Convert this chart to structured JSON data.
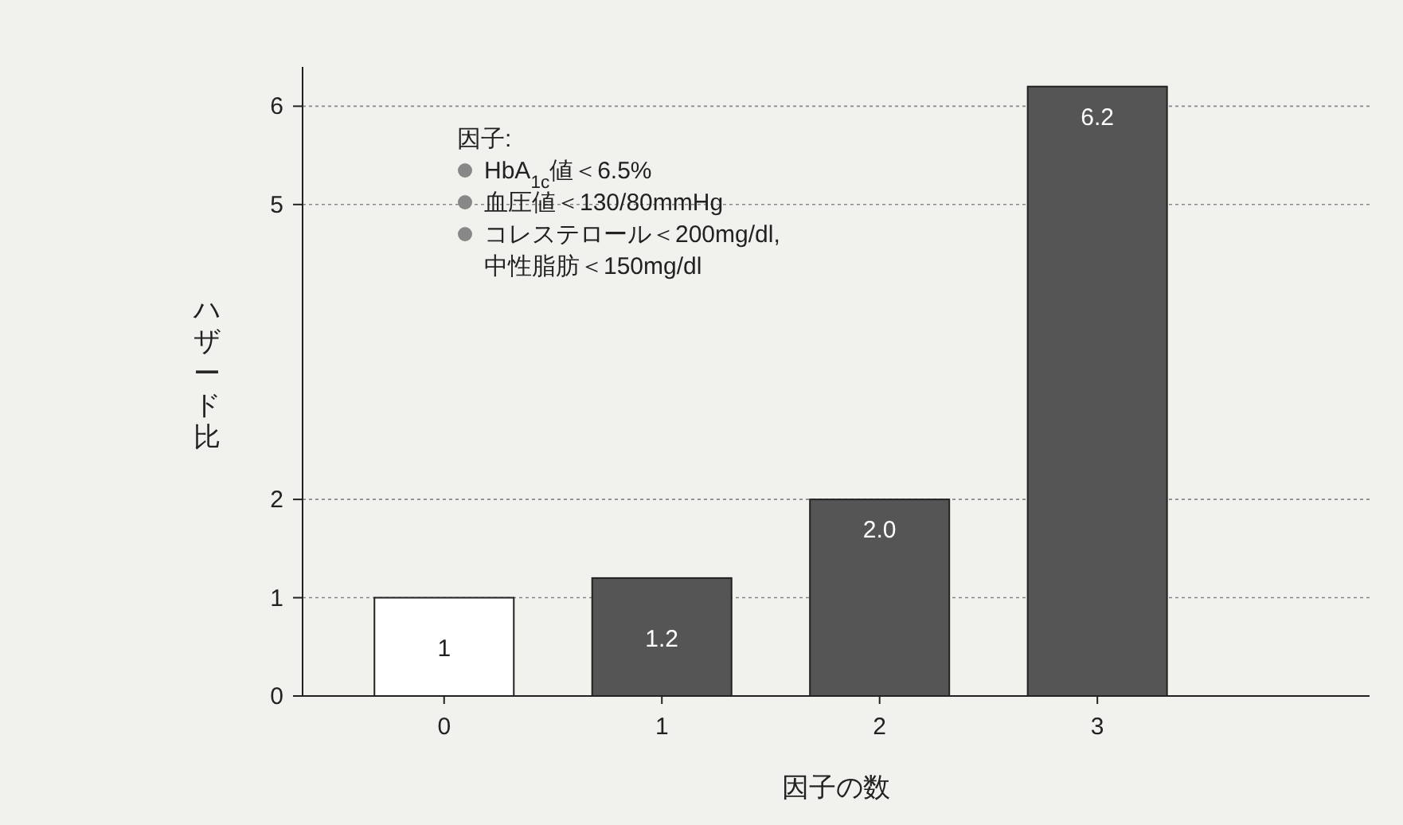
{
  "chart_data": {
    "type": "bar",
    "xlabel": "因子の数",
    "ylabel": "ハザード比",
    "categories": [
      "0",
      "1",
      "2",
      "3"
    ],
    "values": [
      1,
      1.2,
      2.0,
      6.2
    ],
    "value_labels": [
      "1",
      "1.2",
      "2.0",
      "6.2"
    ],
    "colors": [
      "#ffffff",
      "#555555",
      "#555555",
      "#555555"
    ],
    "ylim": [
      0,
      6.4
    ],
    "yticks": [
      0,
      1,
      2,
      5,
      6
    ],
    "grid": "y",
    "annotations": [
      "因子:",
      "HbA$_{1c}$値＜6.5%",
      "血圧値＜130/80mmHg",
      "コレステロール＜200mg/dl,\n中性脂肪＜150mg/dl"
    ]
  }
}
